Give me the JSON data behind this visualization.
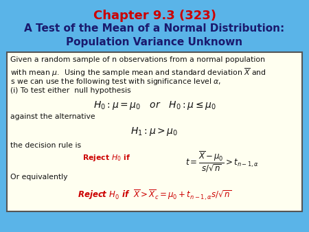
{
  "title_line1": "Chapter 9.3 (323)",
  "title_line2": "A Test of the Mean of a Normal Distribution:",
  "title_line3": "Population Variance Unknown",
  "title1_color": "#cc0000",
  "title23_color": "#1a1a6e",
  "background_color": "#5ab4e8",
  "box_background": "#fffff0",
  "box_border_color": "#555555",
  "text_color": "#111111",
  "red_color": "#cc0000"
}
